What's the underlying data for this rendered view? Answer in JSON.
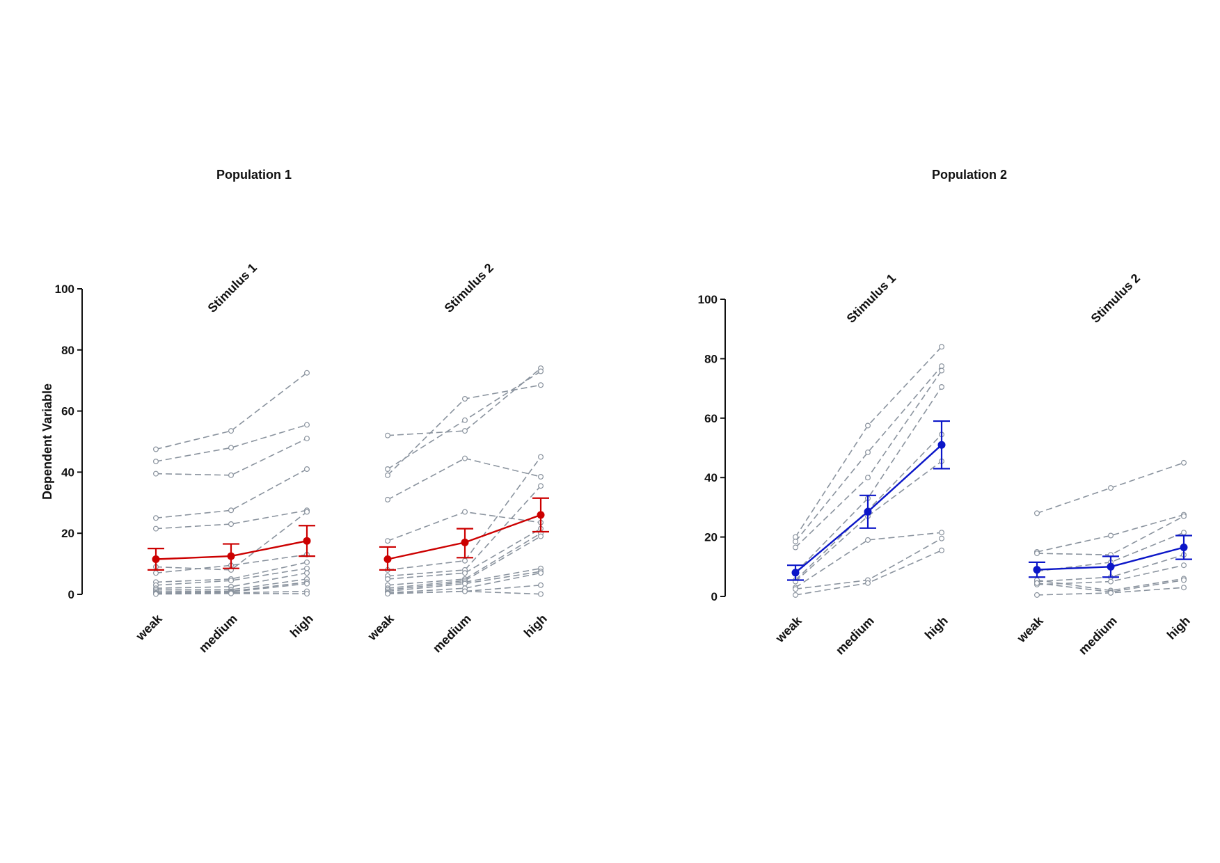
{
  "chart_data": [
    {
      "type": "line",
      "title": "Population 1",
      "ylabel": "Dependent Variable",
      "ylim": [
        0,
        100
      ],
      "yticks": [
        0,
        20,
        40,
        60,
        80,
        100
      ],
      "categories": [
        "weak",
        "medium",
        "high"
      ],
      "mean_color": "#cc0000",
      "individual_color": "#8a939e",
      "panels": [
        {
          "title": "Stimulus 1",
          "mean": [
            11.5,
            12.5,
            17.5
          ],
          "error": [
            [
              8,
              15
            ],
            [
              8.5,
              16.5
            ],
            [
              12.5,
              22.5
            ]
          ],
          "individuals": [
            [
              47.5,
              53.5,
              72.5
            ],
            [
              43.5,
              48,
              55.5
            ],
            [
              39.5,
              39,
              51
            ],
            [
              25,
              27.5,
              41
            ],
            [
              21.5,
              23,
              27.5
            ],
            [
              9,
              8,
              27
            ],
            [
              7,
              9.5,
              13
            ],
            [
              4,
              5,
              10.5
            ],
            [
              3,
              4.5,
              8.5
            ],
            [
              2,
              2.5,
              7
            ],
            [
              1.5,
              1.5,
              5
            ],
            [
              1,
              1,
              4
            ],
            [
              0.5,
              0.8,
              3.5
            ],
            [
              0.3,
              0.5,
              1
            ],
            [
              0.1,
              0.3,
              0.2
            ]
          ]
        },
        {
          "title": "Stimulus 2",
          "mean": [
            11.5,
            17,
            26
          ],
          "error": [
            [
              8,
              15.5
            ],
            [
              12,
              21.5
            ],
            [
              20.5,
              31.5
            ]
          ],
          "individuals": [
            [
              52,
              53.5,
              74
            ],
            [
              41,
              57,
              73
            ],
            [
              39,
              64,
              68.5
            ],
            [
              31,
              44.5,
              38.5
            ],
            [
              17.5,
              27,
              23.5
            ],
            [
              8,
              11,
              45
            ],
            [
              6,
              8,
              35.5
            ],
            [
              5,
              7,
              21.5
            ],
            [
              3,
              5,
              20
            ],
            [
              2,
              4.5,
              19
            ],
            [
              1.5,
              4,
              8.5
            ],
            [
              1,
              3.5,
              7.5
            ],
            [
              0.5,
              2,
              7
            ],
            [
              0.3,
              1,
              3
            ],
            [
              0.2,
              1,
              0.1
            ]
          ]
        }
      ]
    },
    {
      "type": "line",
      "title": "Population 2",
      "ylim": [
        0,
        100
      ],
      "yticks": [
        0,
        20,
        40,
        60,
        80,
        100
      ],
      "categories": [
        "weak",
        "medium",
        "high"
      ],
      "mean_color": "#0b16c8",
      "individual_color": "#8a939e",
      "panels": [
        {
          "title": "Stimulus 1",
          "mean": [
            8,
            28.5,
            51
          ],
          "error": [
            [
              5.5,
              10.5
            ],
            [
              23,
              34
            ],
            [
              43,
              59
            ]
          ],
          "individuals": [
            [
              20,
              57.5,
              84
            ],
            [
              18.5,
              48.5,
              77.5
            ],
            [
              16.5,
              40,
              76
            ],
            [
              8,
              33,
              70.5
            ],
            [
              5.5,
              29,
              54.5
            ],
            [
              5,
              27,
              45.5
            ],
            [
              3,
              19,
              21.5
            ],
            [
              2.5,
              5.5,
              19.5
            ],
            [
              0.5,
              4.5,
              15.5
            ]
          ]
        },
        {
          "title": "Stimulus 2",
          "mean": [
            9,
            10,
            16.5
          ],
          "error": [
            [
              6.5,
              11.5
            ],
            [
              6.5,
              13.5
            ],
            [
              12.5,
              20.5
            ]
          ],
          "individuals": [
            [
              28,
              36.5,
              45
            ],
            [
              15,
              20.5,
              27.5
            ],
            [
              14.5,
              14,
              27
            ],
            [
              8.5,
              11.5,
              21.5
            ],
            [
              5,
              6.5,
              14
            ],
            [
              4,
              5,
              10.5
            ],
            [
              5.5,
              2,
              6
            ],
            [
              4.5,
              1.5,
              5.5
            ],
            [
              0.5,
              1.2,
              3
            ]
          ]
        }
      ]
    }
  ]
}
